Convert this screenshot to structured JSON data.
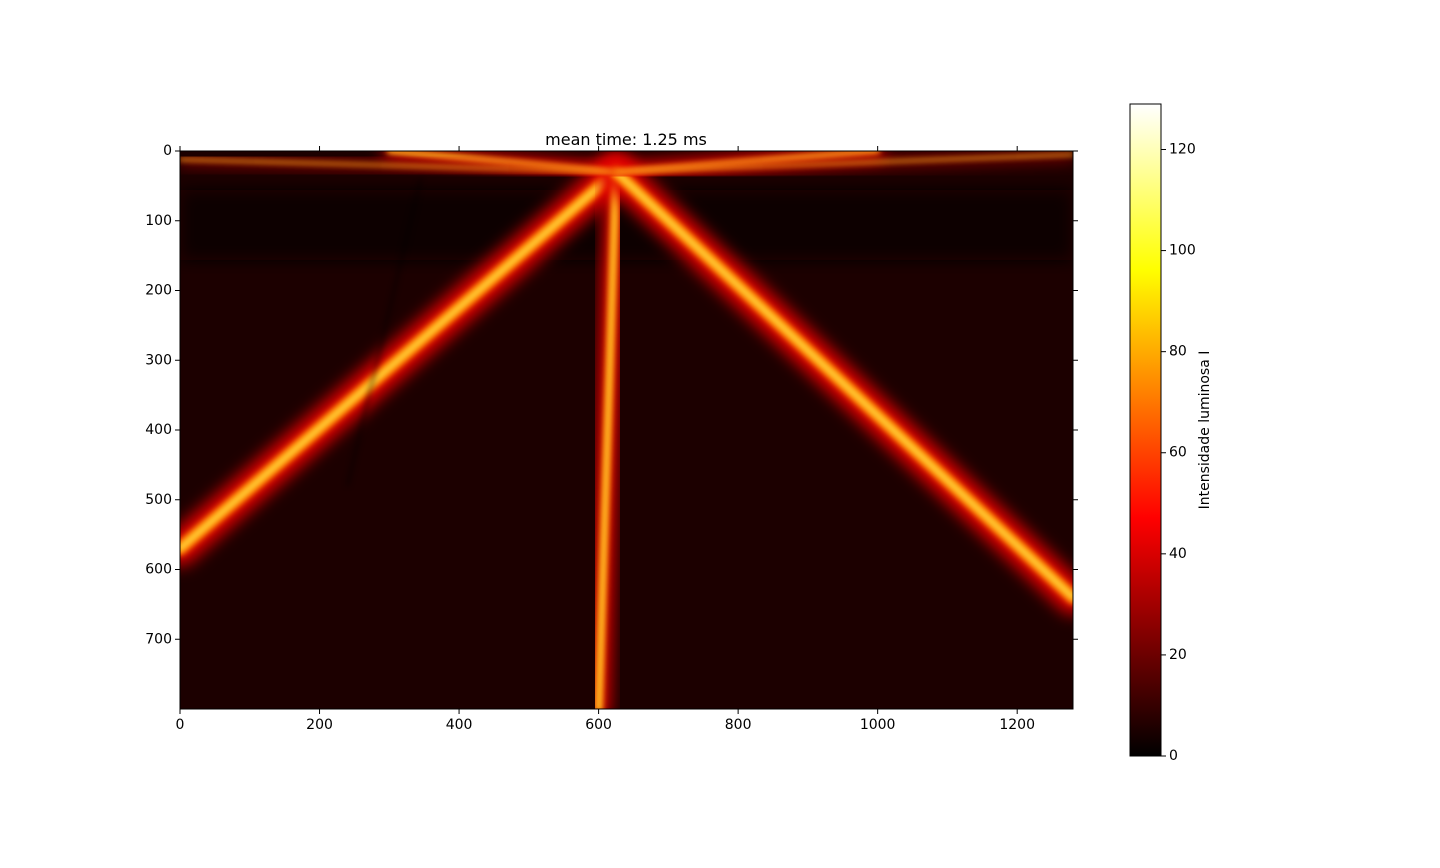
{
  "chart_data": {
    "type": "image",
    "title": "mean time: 1.25 ms",
    "xlim": [
      0,
      1280
    ],
    "ylim": [
      800,
      0
    ],
    "xticks": [
      0,
      200,
      400,
      600,
      800,
      1000,
      1200
    ],
    "yticks": [
      0,
      100,
      200,
      300,
      400,
      500,
      600,
      700
    ],
    "colormap": "hot",
    "colorbar": {
      "label": "Intensidade luminosa I",
      "clim": [
        0,
        129
      ],
      "ticks": [
        0,
        20,
        40,
        60,
        80,
        100,
        120
      ]
    }
  }
}
